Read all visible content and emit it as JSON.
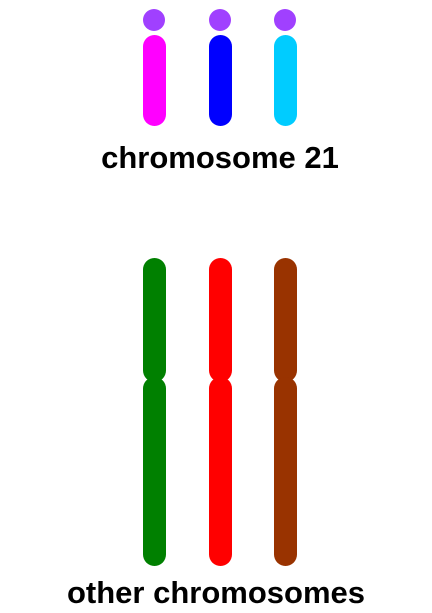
{
  "groups": [
    {
      "label": "chromosome 21"
    },
    {
      "label": "other chromosomes"
    }
  ]
}
